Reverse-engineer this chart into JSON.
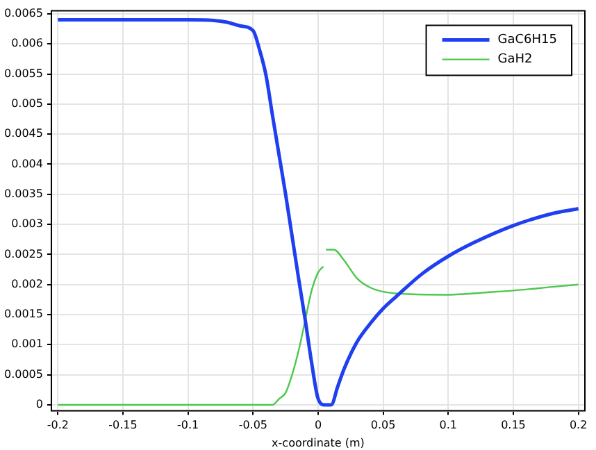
{
  "chart_data": {
    "type": "line",
    "xlabel": "x-coordinate (m)",
    "xlim": [
      -0.205,
      0.205
    ],
    "xticks": [
      -0.2,
      -0.15,
      -0.1,
      -0.05,
      0,
      0.05,
      0.1,
      0.15,
      0.2
    ],
    "ylim": [
      -0.0001,
      0.00655
    ],
    "yticks": [
      0,
      0.0005,
      0.001,
      0.0015,
      0.002,
      0.0025,
      0.003,
      0.0035,
      0.004,
      0.0045,
      0.005,
      0.0055,
      0.006,
      0.0065
    ],
    "grid": true,
    "legend": "top right",
    "marker": "none",
    "line_style": "solid",
    "series": [
      {
        "name": "GaC6H15",
        "color": "#1f3ff0",
        "x": [
          -0.2,
          -0.15,
          -0.1,
          -0.08,
          -0.07,
          -0.06,
          -0.05,
          -0.045,
          -0.04,
          -0.035,
          -0.03,
          -0.025,
          -0.02,
          -0.015,
          -0.01,
          -0.005,
          0,
          0.005,
          0.01,
          0.015,
          0.02,
          0.03,
          0.04,
          0.05,
          0.06,
          0.08,
          0.1,
          0.12,
          0.15,
          0.18,
          0.2
        ],
        "values": [
          0.0064,
          0.0064,
          0.0064,
          0.00639,
          0.00636,
          0.0063,
          0.00622,
          0.0059,
          0.00547,
          0.0048,
          0.00415,
          0.0035,
          0.0028,
          0.0021,
          0.00142,
          0.0007,
          0.0001,
          0.0,
          0.0,
          0.0003,
          0.0006,
          0.00105,
          0.00135,
          0.0016,
          0.0018,
          0.00218,
          0.00247,
          0.0027,
          0.00298,
          0.00318,
          0.00326
        ]
      },
      {
        "name": "GaH2",
        "color": "#4cc84c",
        "x": [
          -0.2,
          -0.15,
          -0.1,
          -0.05,
          -0.04,
          -0.035,
          -0.03,
          -0.025,
          -0.02,
          -0.015,
          -0.01,
          -0.005,
          0,
          0.004,
          0.005,
          0.006,
          0.012,
          0.02,
          0.03,
          0.04,
          0.05,
          0.07,
          0.1,
          0.13,
          0.15,
          0.18,
          0.2
        ],
        "values": [
          0,
          0,
          0,
          0,
          0,
          0,
          0.0001,
          0.0002,
          0.0005,
          0.0009,
          0.0014,
          0.0019,
          0.0022,
          0.0023,
          null,
          0.00258,
          0.00258,
          0.0024,
          0.0021,
          0.00195,
          0.00188,
          0.00184,
          0.00183,
          0.00187,
          0.0019,
          0.00196,
          0.002
        ]
      }
    ]
  }
}
